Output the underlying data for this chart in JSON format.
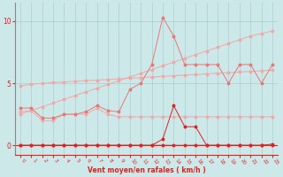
{
  "bg_color": "#cce8e8",
  "grid_color": "#aacfcf",
  "line_color_light": "#f0a8a8",
  "line_color_mid": "#e87878",
  "line_color_dark": "#dd2222",
  "xlabel": "Vent moyen/en rafales ( km/h )",
  "xlabel_color": "#dd2222",
  "tick_color": "#dd2222",
  "xlim": [
    -0.5,
    23.5
  ],
  "ylim": [
    -0.8,
    11.5
  ],
  "yticks": [
    0,
    5,
    10
  ],
  "xticks": [
    0,
    1,
    2,
    3,
    4,
    5,
    6,
    7,
    8,
    9,
    10,
    11,
    12,
    13,
    14,
    15,
    16,
    17,
    18,
    19,
    20,
    21,
    22,
    23
  ],
  "x": [
    0,
    1,
    2,
    3,
    4,
    5,
    6,
    7,
    8,
    9,
    10,
    11,
    12,
    13,
    14,
    15,
    16,
    17,
    18,
    19,
    20,
    21,
    22,
    23
  ],
  "line_upper_y": [
    2.5,
    2.8,
    3.1,
    3.4,
    3.7,
    4.0,
    4.3,
    4.6,
    4.9,
    5.2,
    5.5,
    5.8,
    6.1,
    6.4,
    6.7,
    7.0,
    7.3,
    7.6,
    7.9,
    8.2,
    8.5,
    8.8,
    9.0,
    9.2
  ],
  "line_mid_y": [
    4.8,
    4.9,
    5.0,
    5.05,
    5.1,
    5.15,
    5.2,
    5.25,
    5.3,
    5.35,
    5.4,
    5.45,
    5.5,
    5.55,
    5.6,
    5.65,
    5.7,
    5.75,
    5.8,
    5.85,
    5.9,
    5.95,
    6.0,
    6.05
  ],
  "line_jagged_y": [
    3.0,
    3.0,
    2.2,
    2.2,
    2.5,
    2.5,
    2.7,
    3.2,
    2.8,
    2.7,
    4.5,
    5.0,
    6.5,
    10.3,
    8.8,
    6.5,
    6.5,
    6.5,
    6.5,
    5.0,
    6.5,
    6.5,
    5.0,
    6.5
  ],
  "line_low_y": [
    2.7,
    2.8,
    2.0,
    2.0,
    2.5,
    2.5,
    2.5,
    3.0,
    2.5,
    2.3,
    2.3,
    2.3,
    2.3,
    2.3,
    2.3,
    2.3,
    2.3,
    2.3,
    2.3,
    2.3,
    2.3,
    2.3,
    2.3,
    2.3
  ],
  "line_red_y": [
    0.0,
    0.0,
    0.0,
    0.0,
    0.0,
    0.0,
    0.0,
    0.0,
    0.0,
    0.0,
    0.0,
    0.0,
    0.0,
    0.5,
    3.2,
    1.5,
    1.5,
    0.0,
    0.0,
    0.0,
    0.0,
    0.0,
    0.0,
    0.0
  ],
  "line_zero_y": [
    0.0,
    0.0,
    0.0,
    0.0,
    0.0,
    0.0,
    0.0,
    0.0,
    0.0,
    0.0,
    0.0,
    0.0,
    0.0,
    0.0,
    0.0,
    0.0,
    0.0,
    0.0,
    0.0,
    0.0,
    0.0,
    0.0,
    0.0,
    0.1
  ]
}
